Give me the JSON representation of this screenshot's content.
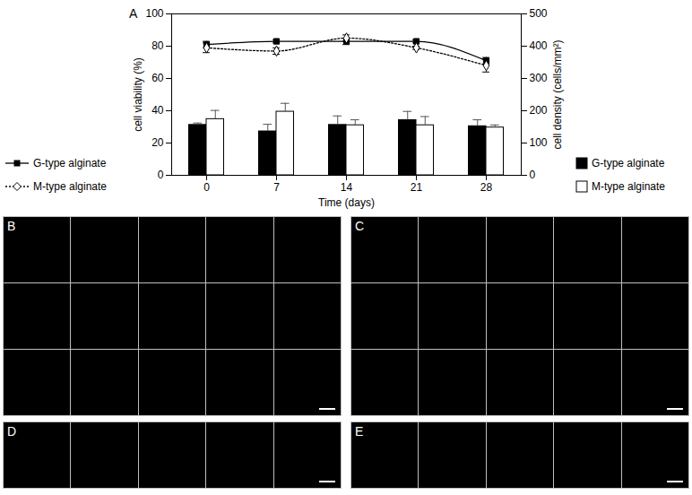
{
  "chart_data": {
    "type": "bar",
    "panel_label": "A",
    "x_label": "Time (days)",
    "y_label": "cell viability (%)",
    "y2_label": "cell density (cells/mm²)",
    "categories": [
      "0",
      "7",
      "14",
      "21",
      "28"
    ],
    "ylim": [
      0,
      100
    ],
    "yticks": [
      0,
      20,
      40,
      60,
      80,
      100
    ],
    "y2lim": [
      0,
      500
    ],
    "y2ticks": [
      0,
      100,
      200,
      300,
      400,
      500
    ],
    "legend": "sides",
    "series": [
      {
        "name": "G-type alginate",
        "type": "bar",
        "axis": "y2",
        "color": "#000000",
        "values": [
          156,
          136,
          156,
          171,
          152
        ],
        "errors": [
          6,
          22,
          28,
          27,
          20
        ]
      },
      {
        "name": "M-type alginate",
        "type": "bar",
        "axis": "y2",
        "color": "#ffffff",
        "values": [
          174,
          197,
          155,
          155,
          148
        ],
        "errors": [
          27,
          26,
          17,
          27,
          8
        ]
      },
      {
        "name": "G-type alginate",
        "type": "line",
        "color": "#000000",
        "marker": "square",
        "line_style": "solid",
        "values": [
          81,
          83,
          83,
          83,
          71
        ],
        "errors": [
          2,
          1,
          2,
          1,
          2
        ]
      },
      {
        "name": "M-type alginate",
        "type": "line",
        "color": "#000000",
        "marker": "diamond",
        "line_style": "dotted",
        "values": [
          79,
          77,
          85,
          79,
          68
        ],
        "errors": [
          3,
          2,
          2,
          1,
          4
        ]
      }
    ]
  },
  "image_panels": [
    {
      "label": "B",
      "rows": 3,
      "columns": 5
    },
    {
      "label": "C",
      "rows": 3,
      "columns": 5
    },
    {
      "label": "D",
      "rows": 1,
      "columns": 5
    },
    {
      "label": "E",
      "rows": 1,
      "columns": 5
    }
  ]
}
